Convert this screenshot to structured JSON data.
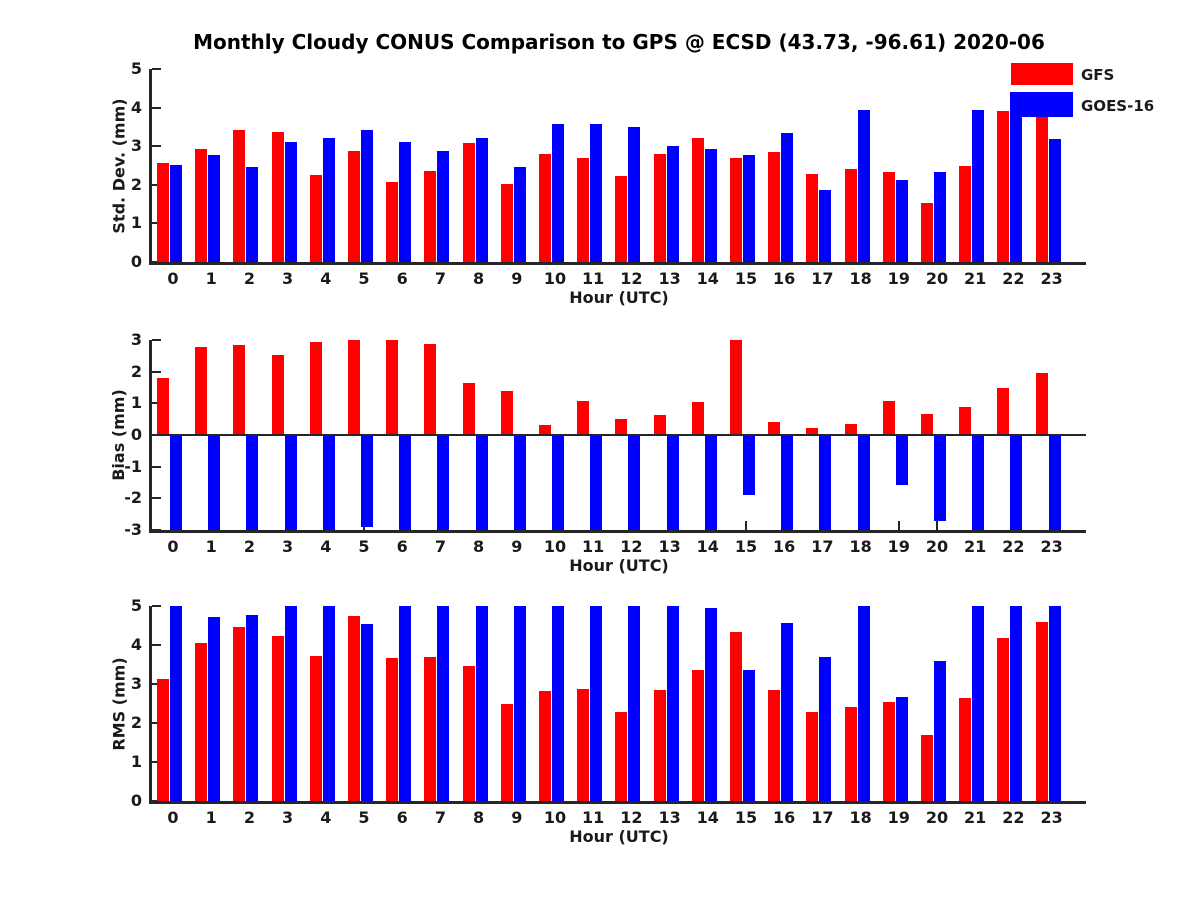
{
  "title": "Monthly Cloudy CONUS Comparison to GPS @ ECSD (43.73, -96.61) 2020-06",
  "legend": {
    "position": "top-right",
    "items": [
      {
        "label": "GFS",
        "color": "#ff0000"
      },
      {
        "label": "GOES-16",
        "color": "#0000ff"
      }
    ]
  },
  "colors": {
    "axis": "#262626",
    "text": "#1a1a1a",
    "gfs": "#ff0000",
    "goes16": "#0000ff",
    "background": "#ffffff"
  },
  "chart_data": [
    {
      "type": "bar",
      "panel": "std-dev",
      "ylabel": "Std. Dev. (mm)",
      "xlabel": "Hour (UTC)",
      "ylim": [
        0,
        5
      ],
      "yticks": [
        0,
        1,
        2,
        3,
        4,
        5
      ],
      "grid": false,
      "categories": [
        0,
        1,
        2,
        3,
        4,
        5,
        6,
        7,
        8,
        9,
        10,
        11,
        12,
        13,
        14,
        15,
        16,
        17,
        18,
        19,
        20,
        21,
        22,
        23
      ],
      "series": [
        {
          "name": "GFS",
          "color": "#ff0000",
          "values": [
            2.57,
            2.93,
            3.43,
            3.38,
            2.25,
            2.87,
            2.08,
            2.36,
            3.08,
            2.03,
            2.79,
            2.69,
            2.24,
            2.8,
            3.21,
            2.7,
            2.85,
            2.28,
            2.41,
            2.34,
            1.52,
            2.5,
            3.91,
            3.76
          ]
        },
        {
          "name": "GOES-16",
          "color": "#0000ff",
          "values": [
            2.51,
            2.77,
            2.46,
            3.1,
            3.2,
            3.41,
            3.1,
            2.87,
            3.22,
            2.47,
            3.58,
            3.58,
            3.5,
            3.0,
            2.94,
            2.76,
            3.34,
            1.87,
            3.93,
            2.12,
            2.34,
            3.95,
            4.22,
            3.18
          ]
        }
      ]
    },
    {
      "type": "bar",
      "panel": "bias",
      "ylabel": "Bias (mm)",
      "xlabel": "Hour (UTC)",
      "ylim": [
        -3,
        3
      ],
      "yticks": [
        3,
        2,
        1,
        0,
        -1,
        -2,
        -3
      ],
      "grid": false,
      "categories": [
        0,
        1,
        2,
        3,
        4,
        5,
        6,
        7,
        8,
        9,
        10,
        11,
        12,
        13,
        14,
        15,
        16,
        17,
        18,
        19,
        20,
        21,
        22,
        23
      ],
      "series": [
        {
          "name": "GFS",
          "color": "#ff0000",
          "values": [
            1.8,
            2.79,
            2.83,
            2.53,
            2.94,
            3.0,
            3.0,
            2.86,
            1.64,
            1.39,
            0.33,
            1.07,
            0.5,
            0.62,
            1.04,
            3.0,
            0.41,
            0.23,
            0.35,
            1.08,
            0.67,
            0.88,
            1.48,
            1.97
          ]
        },
        {
          "name": "GOES-16",
          "color": "#0000ff",
          "values": [
            -3.0,
            -3.0,
            -3.0,
            -3.0,
            -3.0,
            -2.9,
            -3.0,
            -3.0,
            -3.0,
            -3.0,
            -3.0,
            -3.0,
            -3.0,
            -3.0,
            -3.0,
            -1.88,
            -3.0,
            -3.0,
            -3.0,
            -1.57,
            -2.72,
            -3.0,
            -3.0,
            -3.0
          ]
        }
      ]
    },
    {
      "type": "bar",
      "panel": "rms",
      "ylabel": "RMS (mm)",
      "xlabel": "Hour (UTC)",
      "ylim": [
        0,
        5
      ],
      "yticks": [
        0,
        1,
        2,
        3,
        4,
        5
      ],
      "grid": false,
      "categories": [
        0,
        1,
        2,
        3,
        4,
        5,
        6,
        7,
        8,
        9,
        10,
        11,
        12,
        13,
        14,
        15,
        16,
        17,
        18,
        19,
        20,
        21,
        22,
        23
      ],
      "series": [
        {
          "name": "GFS",
          "color": "#ff0000",
          "values": [
            3.12,
            4.06,
            4.47,
            4.23,
            3.72,
            4.74,
            3.66,
            3.7,
            3.46,
            2.48,
            2.82,
            2.87,
            2.28,
            2.85,
            3.35,
            4.33,
            2.85,
            2.27,
            2.42,
            2.55,
            1.68,
            2.65,
            4.17,
            4.58
          ]
        },
        {
          "name": "GOES-16",
          "color": "#0000ff",
          "values": [
            5.0,
            4.73,
            4.77,
            5.0,
            5.0,
            4.53,
            5.0,
            5.0,
            5.0,
            5.0,
            5.0,
            5.0,
            5.0,
            5.0,
            4.96,
            3.35,
            4.57,
            3.69,
            5.0,
            2.66,
            3.6,
            5.0,
            5.0,
            5.0
          ]
        }
      ]
    }
  ]
}
